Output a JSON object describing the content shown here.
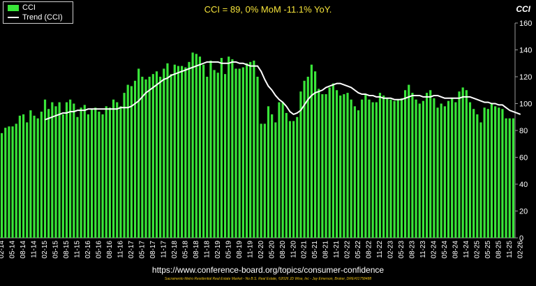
{
  "headline": "CCI = 89, 0% MoM -11.1% YoY.",
  "corner_label": "CCI",
  "source_url": "https://www.conference-board.org/topics/consumer-confidence",
  "footer_note": "Sacramento Metro Residential Real Estate Market - No B.S. Real Estate, ©2026 JD Wise, Inc - Jay Emerson, Broker, DRE#01758488",
  "colors": {
    "bar": "#39e639",
    "trend": "#ffffff",
    "headline": "#f5e33a",
    "background": "#000000"
  },
  "chart_data": {
    "type": "bar",
    "legend": [
      "CCI",
      "Trend (CCI)"
    ],
    "legend_position": "top-left",
    "ylim": [
      0,
      160
    ],
    "yticks": [
      0,
      20,
      40,
      60,
      80,
      100,
      120,
      140,
      160
    ],
    "grid": false,
    "xticklabels": [
      "02-14",
      "05-14",
      "08-14",
      "11-14",
      "02-15",
      "05-15",
      "08-15",
      "11-15",
      "02-16",
      "05-16",
      "08-16",
      "11-16",
      "02-17",
      "05-17",
      "08-17",
      "11-17",
      "02-18",
      "05-18",
      "08-18",
      "11-18",
      "02-19",
      "05-19",
      "08-19",
      "11-19",
      "02-20",
      "05-20",
      "08-20",
      "11-20",
      "02-21",
      "05-21",
      "08-21",
      "11-21",
      "02-22",
      "05-22",
      "08-22",
      "11-22",
      "02-23",
      "05-23",
      "08-23",
      "11-23",
      "02-24",
      "05-24",
      "08-24",
      "11-24",
      "02-25",
      "05-25",
      "08-25",
      "11-25",
      "02-26"
    ],
    "series": [
      {
        "name": "CCI",
        "values": [
          78,
          82,
          83,
          83,
          85,
          91,
          92,
          86,
          95,
          91,
          89,
          94,
          103,
          96,
          101,
          98,
          101,
          92,
          101,
          103,
          100,
          90,
          97,
          99,
          92,
          96,
          97,
          94,
          92,
          98,
          97,
          103,
          101,
          98,
          108,
          114,
          113,
          117,
          126,
          120,
          118,
          120,
          122,
          124,
          120,
          126,
          130,
          122,
          129,
          128,
          128,
          127,
          131,
          138,
          137,
          135,
          129,
          120,
          132,
          125,
          123,
          134,
          122,
          135,
          133,
          126,
          126,
          127,
          130,
          131,
          132,
          120,
          85,
          85,
          98,
          92,
          86,
          101,
          101,
          93,
          87,
          87,
          90,
          109,
          117,
          120,
          129,
          124,
          111,
          107,
          107,
          112,
          115,
          110,
          106,
          107,
          108,
          103,
          98,
          95,
          103,
          107,
          103,
          101,
          101,
          108,
          106,
          104,
          103,
          102,
          103,
          104,
          110,
          114,
          108,
          103,
          100,
          102,
          108,
          110,
          104,
          97,
          100,
          98,
          102,
          104,
          101,
          109,
          112,
          110,
          101,
          96,
          92,
          86,
          97,
          96,
          100,
          98,
          97,
          96,
          89,
          89,
          89
        ]
      },
      {
        "name": "Trend (CCI)",
        "values": [
          null,
          null,
          null,
          null,
          null,
          null,
          null,
          null,
          null,
          null,
          null,
          null,
          88,
          89,
          90,
          91,
          92,
          93,
          93,
          94,
          94,
          95,
          95,
          95,
          96,
          96,
          96,
          96,
          96,
          96,
          96,
          96,
          96,
          97,
          97,
          97,
          98,
          100,
          102,
          105,
          108,
          110,
          112,
          114,
          116,
          118,
          119,
          121,
          122,
          123,
          124,
          125,
          126,
          127,
          128,
          129,
          130,
          131,
          131,
          131,
          131,
          130,
          130,
          130,
          131,
          131,
          130,
          130,
          129,
          128,
          128,
          128,
          124,
          118,
          113,
          110,
          106,
          103,
          101,
          98,
          94,
          92,
          93,
          95,
          99,
          103,
          106,
          108,
          109,
          110,
          112,
          113,
          114,
          115,
          115,
          114,
          113,
          112,
          110,
          108,
          107,
          107,
          106,
          106,
          105,
          105,
          104,
          104,
          104,
          103,
          103,
          103,
          104,
          105,
          106,
          106,
          106,
          105,
          105,
          105,
          106,
          106,
          105,
          104,
          104,
          104,
          104,
          104,
          105,
          105,
          105,
          104,
          103,
          102,
          101,
          101,
          100,
          100,
          99,
          99,
          97,
          95,
          94,
          93,
          92
        ]
      }
    ]
  }
}
